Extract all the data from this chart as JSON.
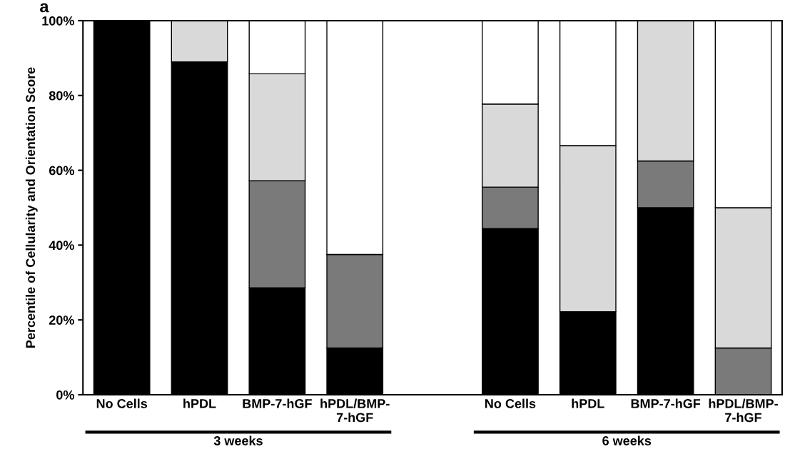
{
  "chart_data": {
    "type": "bar",
    "stacked": true,
    "ylabel": "Percentile of Cellularity and Orientation Score",
    "categories": [
      "No Cells",
      "hPDL",
      "BMP-7-hGF",
      "hPDL/BMP-\n7-hGF",
      null,
      "No Cells",
      "hPDL",
      "BMP-7-hGF",
      "hPDL/BMP-\n7-hGF"
    ],
    "series": [
      {
        "color": "#000000",
        "values": [
          100,
          89,
          28.6,
          12.5,
          null,
          44.4,
          22.2,
          50,
          null
        ]
      },
      {
        "color": "#7a7a7a",
        "values": [
          null,
          null,
          28.6,
          25,
          null,
          11.1,
          null,
          12.5,
          12.5
        ]
      },
      {
        "color": "#d9d9d9",
        "values": [
          null,
          11,
          28.6,
          null,
          null,
          22.2,
          44.4,
          37.5,
          37.5
        ]
      },
      {
        "color": "#ffffff",
        "values": [
          null,
          null,
          14.2,
          62.5,
          null,
          22.3,
          33.4,
          null,
          50
        ]
      }
    ],
    "ylim": [
      0,
      100
    ],
    "yticks": [
      {
        "value": 0,
        "label": "0%"
      },
      {
        "value": 20,
        "label": "20%"
      },
      {
        "value": 40,
        "label": "40%"
      },
      {
        "value": 60,
        "label": "60%"
      },
      {
        "value": 80,
        "label": "80%"
      },
      {
        "value": 100,
        "label": "100%"
      }
    ],
    "annotations": [
      "a",
      "3 weeks",
      "6 weeks"
    ],
    "grid": false,
    "legend": false
  }
}
